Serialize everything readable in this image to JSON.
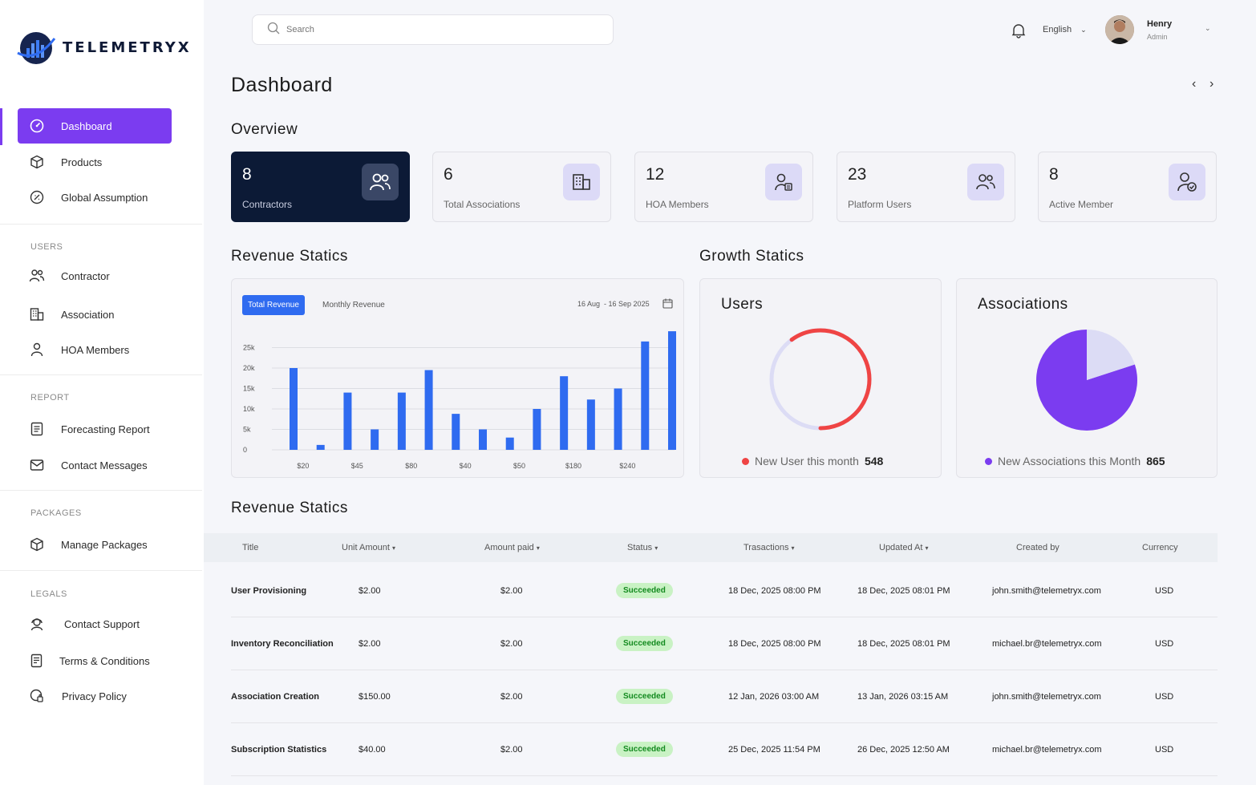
{
  "app": {
    "brand": "TELEMETRYX"
  },
  "search": {
    "placeholder": "Search"
  },
  "topbar": {
    "language": "English",
    "user_name": "Henry",
    "user_role": "Admin"
  },
  "sidebar": {
    "main_items": [
      {
        "label": "Dashboard",
        "icon": "gauge-icon"
      },
      {
        "label": "Products",
        "icon": "box-icon"
      },
      {
        "label": "Global Assumption",
        "icon": "settings-icon"
      }
    ],
    "sections": [
      {
        "label": "USERS",
        "items": [
          {
            "label": "Contractor",
            "icon": "users-icon"
          },
          {
            "label": "Association",
            "icon": "building-icon"
          },
          {
            "label": "HOA Members",
            "icon": "user-icon"
          }
        ]
      },
      {
        "label": "REPORT",
        "items": [
          {
            "label": "Forecasting Report",
            "icon": "report-icon"
          },
          {
            "label": "Contact Messages",
            "icon": "mail-icon"
          }
        ]
      },
      {
        "label": "PACKAGES",
        "items": [
          {
            "label": "Manage Packages",
            "icon": "package-icon"
          }
        ]
      },
      {
        "label": "LEGALS",
        "items": [
          {
            "label": "Contact Support",
            "icon": "support-icon"
          },
          {
            "label": "Terms & Conditions",
            "icon": "document-icon"
          },
          {
            "label": "Privacy Policy",
            "icon": "shield-icon"
          }
        ]
      }
    ]
  },
  "page": {
    "title": "Dashboard",
    "overview_title": "Overview",
    "revenue_title": "Revenue Statics",
    "growth_title": "Growth Statics",
    "table_title": "Revenue Statics"
  },
  "stats": [
    {
      "value": "8",
      "label": "Contractors"
    },
    {
      "value": "6",
      "label": "Total Associations"
    },
    {
      "value": "12",
      "label": "HOA Members"
    },
    {
      "value": "23",
      "label": "Platform Users"
    },
    {
      "value": "8",
      "label": "Active Member"
    }
  ],
  "revenue": {
    "tab_total": "Total Revenue",
    "tab_monthly": "Monthly Revenue",
    "date_range": "16 Aug  - 16 Sep 2025"
  },
  "chart_data": [
    {
      "type": "bar",
      "title": "",
      "x_tick_labels": [
        "$20",
        "$45",
        "$80",
        "$40",
        "$50",
        "$180",
        "$240"
      ],
      "y_ticks": [
        "0",
        "5k",
        "10k",
        "15k",
        "20k",
        "25k"
      ],
      "ylim": [
        0,
        30000
      ],
      "values": [
        20000,
        1200,
        14000,
        5000,
        14000,
        19500,
        8800,
        5000,
        3000,
        10000,
        18000,
        12300,
        15000,
        26500,
        29000
      ],
      "color": "#2f6bf0",
      "grid": true
    },
    {
      "type": "pie",
      "title": "Users",
      "style": "ring",
      "slices": [
        {
          "label": "New User this month",
          "value": 548,
          "fraction": 0.6,
          "color": "#ef4444"
        },
        {
          "label": "Remaining",
          "fraction": 0.4,
          "color": "#dcdcf5"
        }
      ]
    },
    {
      "type": "pie",
      "title": "Associations",
      "slices": [
        {
          "label": "New Associations this Month",
          "value": 865,
          "fraction": 0.8,
          "color": "#7b3cf0"
        },
        {
          "label": "Remaining",
          "fraction": 0.2,
          "color": "#dcdcf5"
        }
      ]
    }
  ],
  "growth": {
    "users": {
      "title": "Users",
      "legend": "New User this month",
      "value": "548",
      "color": "#ef4444"
    },
    "associations": {
      "title": "Associations",
      "legend": "New Associations this Month",
      "value": "865",
      "color": "#7b3cf0"
    }
  },
  "table": {
    "headers": [
      "Title",
      "Unit Amount",
      "Amount paid",
      "Status",
      "Trasactions",
      "Updated At",
      "Created by",
      "Currency"
    ],
    "rows": [
      [
        "User Provisioning",
        "$2.00",
        "$2.00",
        "Succeeded",
        "18 Dec, 2025 08:00 PM",
        "18 Dec, 2025 08:01 PM",
        "john.smith@telemetryx.com",
        "USD"
      ],
      [
        "Inventory Reconciliation",
        "$2.00",
        "$2.00",
        "Succeeded",
        "18 Dec, 2025 08:00 PM",
        "18 Dec, 2025 08:01 PM",
        "michael.br@telemetryx.com",
        "USD"
      ],
      [
        "Association Creation",
        "$150.00",
        "$2.00",
        "Succeeded",
        "12 Jan, 2026 03:00 AM",
        "13 Jan, 2026 03:15 AM",
        "john.smith@telemetryx.com",
        "USD"
      ],
      [
        "Subscription Statistics",
        "$40.00",
        "$2.00",
        "Succeeded",
        "25 Dec, 2025 11:54 PM",
        "26 Dec, 2025 12:50 AM",
        "michael.br@telemetryx.com",
        "USD"
      ]
    ]
  }
}
